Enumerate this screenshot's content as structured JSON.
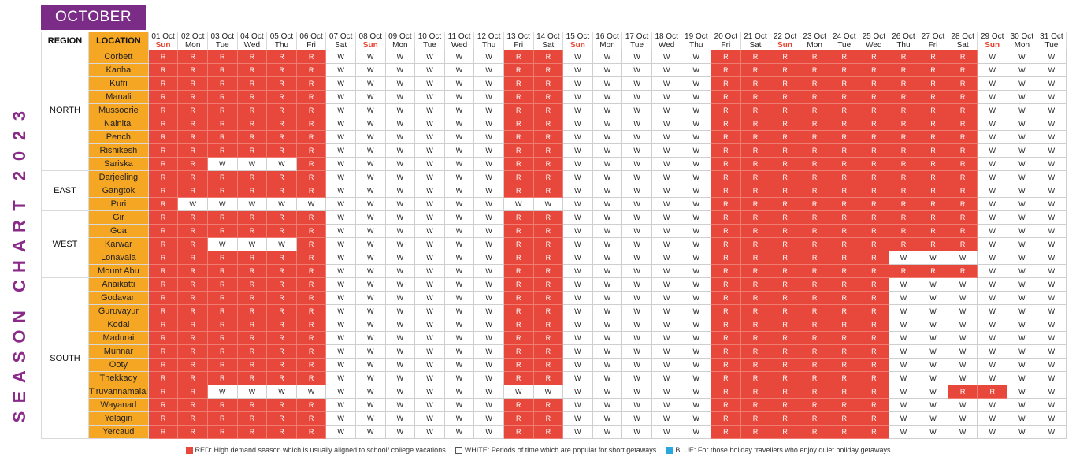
{
  "vertical_title": "SEASON CHART 2023",
  "month": "OCTOBER",
  "headers": {
    "region": "REGION",
    "location": "LOCATION"
  },
  "days": [
    {
      "date": "01 Oct",
      "wd": "Sun"
    },
    {
      "date": "02 Oct",
      "wd": "Mon"
    },
    {
      "date": "03 Oct",
      "wd": "Tue"
    },
    {
      "date": "04 Oct",
      "wd": "Wed"
    },
    {
      "date": "05 Oct",
      "wd": "Thu"
    },
    {
      "date": "06 Oct",
      "wd": "Fri"
    },
    {
      "date": "07 Oct",
      "wd": "Sat"
    },
    {
      "date": "08 Oct",
      "wd": "Sun"
    },
    {
      "date": "09 Oct",
      "wd": "Mon"
    },
    {
      "date": "10 Oct",
      "wd": "Tue"
    },
    {
      "date": "11 Oct",
      "wd": "Wed"
    },
    {
      "date": "12 Oct",
      "wd": "Thu"
    },
    {
      "date": "13 Oct",
      "wd": "Fri"
    },
    {
      "date": "14 Oct",
      "wd": "Sat"
    },
    {
      "date": "15 Oct",
      "wd": "Sun"
    },
    {
      "date": "16 Oct",
      "wd": "Mon"
    },
    {
      "date": "17 Oct",
      "wd": "Tue"
    },
    {
      "date": "18 Oct",
      "wd": "Wed"
    },
    {
      "date": "19 Oct",
      "wd": "Thu"
    },
    {
      "date": "20 Oct",
      "wd": "Fri"
    },
    {
      "date": "21 Oct",
      "wd": "Sat"
    },
    {
      "date": "22 Oct",
      "wd": "Sun"
    },
    {
      "date": "23 Oct",
      "wd": "Mon"
    },
    {
      "date": "24 Oct",
      "wd": "Tue"
    },
    {
      "date": "25 Oct",
      "wd": "Wed"
    },
    {
      "date": "26 Oct",
      "wd": "Thu"
    },
    {
      "date": "27 Oct",
      "wd": "Fri"
    },
    {
      "date": "28 Oct",
      "wd": "Sat"
    },
    {
      "date": "29 Oct",
      "wd": "Sun"
    },
    {
      "date": "30 Oct",
      "wd": "Mon"
    },
    {
      "date": "31 Oct",
      "wd": "Tue"
    }
  ],
  "regions": [
    {
      "name": "NORTH",
      "locations": [
        {
          "name": "Corbett",
          "cells": "RRRRRRWWWWWWRRWWWWWRRRRRRRRRWWW"
        },
        {
          "name": "Kanha",
          "cells": "RRRRRRWWWWWWRRWWWWWRRRRRRRRRWWW"
        },
        {
          "name": "Kufri",
          "cells": "RRRRRRWWWWWWRRWWWWWRRRRRRRRRWWW"
        },
        {
          "name": "Manali",
          "cells": "RRRRRRWWWWWWRRWWWWWRRRRRRRRRWWW"
        },
        {
          "name": "Mussoorie",
          "cells": "RRRRRRWWWWWWRRWWWWWRRRRRRRRRWWW"
        },
        {
          "name": "Nainital",
          "cells": "RRRRRRWWWWWWRRWWWWWRRRRRRRRRWWW"
        },
        {
          "name": "Pench",
          "cells": "RRRRRRWWWWWWRRWWWWWRRRRRRRRRWWW"
        },
        {
          "name": "Rishikesh",
          "cells": "RRRRRRWWWWWWRRWWWWWRRRRRRRRRWWW"
        },
        {
          "name": "Sariska",
          "cells": "RRWWWRWWWWWWRRWWWWWRRRRRRRRRWWW"
        }
      ]
    },
    {
      "name": "EAST",
      "locations": [
        {
          "name": "Darjeeling",
          "cells": "RRRRRRWWWWWWRRWWWWWRRRRRRRRRWWW"
        },
        {
          "name": "Gangtok",
          "cells": "RRRRRRWWWWWWRRWWWWWRRRRRRRRRWWW"
        },
        {
          "name": "Puri",
          "cells": "RWWWWWWWWWWWWWWWWWWRRRRRRRRRWWW"
        }
      ]
    },
    {
      "name": "WEST",
      "locations": [
        {
          "name": "Gir",
          "cells": "RRRRRRWWWWWWRRWWWWWRRRRRRRRRWWW"
        },
        {
          "name": "Goa",
          "cells": "RRRRRRWWWWWWRRWWWWWRRRRRRRRRWWW"
        },
        {
          "name": "Karwar",
          "cells": "RRWWWRWWWWWWRRWWWWWRRRRRRRRRWWW"
        },
        {
          "name": "Lonavala",
          "cells": "RRRRRRWWWWWWRRWWWWWRRRRRRWWWWWW"
        },
        {
          "name": "Mount Abu",
          "cells": "RRRRRRWWWWWWRRWWWWWRRRRRRRRRWWW"
        }
      ]
    },
    {
      "name": "SOUTH",
      "locations": [
        {
          "name": "Anaikatti",
          "cells": "RRRRRRWWWWWWRRWWWWWRRRRRRWWWWWW"
        },
        {
          "name": "Godavari",
          "cells": "RRRRRRWWWWWWRRWWWWWRRRRRRWWWWWW"
        },
        {
          "name": "Guruvayur",
          "cells": "RRRRRRWWWWWWRRWWWWWRRRRRRWWWWWW"
        },
        {
          "name": "Kodai",
          "cells": "RRRRRRWWWWWWRRWWWWWRRRRRRWWWWWW"
        },
        {
          "name": "Madurai",
          "cells": "RRRRRRWWWWWWRRWWWWWRRRRRRWWWWWW"
        },
        {
          "name": "Munnar",
          "cells": "RRRRRRWWWWWWRRWWWWWRRRRRRWWWWWW"
        },
        {
          "name": "Ooty",
          "cells": "RRRRRRWWWWWWRRWWWWWRRRRRRWWWWWW"
        },
        {
          "name": "Thekkady",
          "cells": "RRRRRRWWWWWWRRWWWWWRRRRRRWWWWWW"
        },
        {
          "name": "Tiruvannamalai",
          "cells": "RRWWWWWWWWWWWWWWWWWRRRRRRWWRRWW"
        },
        {
          "name": "Wayanad",
          "cells": "RRRRRRWWWWWWRRWWWWWRRRRRRWWWWWW"
        },
        {
          "name": "Yelagiri",
          "cells": "RRRRRRWWWWWWRRWWWWWRRRRRRWWWWWW"
        },
        {
          "name": "Yercaud",
          "cells": "RRRRRRWWWWWWRRWWWWWRRRRRRWWWWWW"
        }
      ]
    }
  ],
  "legend": [
    {
      "text": "RED: High demand season which is usually aligned to school/ college vacations",
      "color": "#e8473b"
    },
    {
      "text": "WHITE: Periods of time which are popular for short getaways",
      "color": "#ffffff"
    },
    {
      "text": "BLUE: For those holiday travellers who enjoy quiet holiday getaways",
      "color": "#2aa7df"
    }
  ],
  "colors": {
    "red": "#e8473b",
    "white": "#ffffff",
    "orange": "#f5a623",
    "purple": "#7b2c86",
    "blue": "#2aa7df"
  }
}
